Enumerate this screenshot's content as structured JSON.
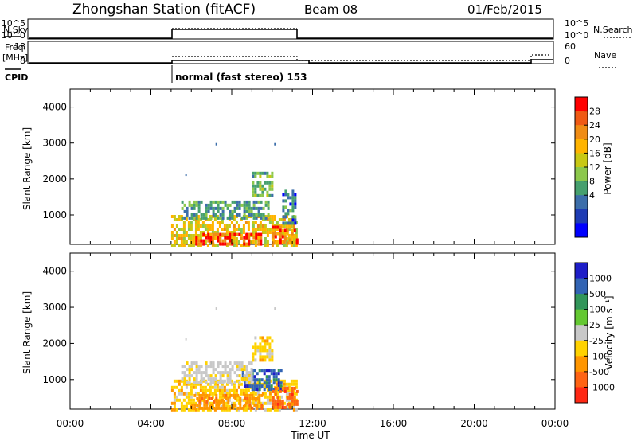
{
  "header": {
    "station": "Zhongshan Station (fitACF)",
    "beam": "Beam 08",
    "date": "01/Feb/2015"
  },
  "top_panels": {
    "nsky_label": "N.Sky",
    "nsky_ticks": [
      "10^5",
      "10^0"
    ],
    "nsearch_label": "N.Search",
    "nsearch_ticks": [
      "10^5",
      "10^0"
    ],
    "freq_label": "Freq.",
    "freq_unit": "[MHz]",
    "freq_ticks": [
      "18",
      "8"
    ],
    "nave_label": "Nave",
    "nave_ticks": [
      "60",
      "0"
    ],
    "cpid_label": "CPID",
    "cpid_text": "normal (fast stereo) 153"
  },
  "axes": {
    "x_ticks": [
      "00:00",
      "04:00",
      "08:00",
      "12:00",
      "16:00",
      "20:00",
      "00:00"
    ],
    "x_label": "Time UT",
    "y_ticks": [
      "1000",
      "2000",
      "3000",
      "4000"
    ],
    "y_label": "Slant Range [km]"
  },
  "colorbars": {
    "power": {
      "label": "Power [dB]",
      "ticks": [
        "28",
        "24",
        "20",
        "16",
        "12",
        "8",
        "4"
      ],
      "colors": [
        "#ff0000",
        "#f05a14",
        "#f08c14",
        "#ffb400",
        "#c8c814",
        "#8cc84b",
        "#46a06e",
        "#3c6eaa",
        "#1e3cb4",
        "#0000ff"
      ]
    },
    "velocity": {
      "label": "Velocity [m s⁻¹]",
      "ticks": [
        "1000",
        "500",
        "100",
        "25",
        "-25",
        "-100",
        "-500",
        "-1000"
      ],
      "colors": [
        "#1e1ec8",
        "#3264b4",
        "#32965a",
        "#64c832",
        "#c8c8c8",
        "#ffd200",
        "#ff9600",
        "#ff6414",
        "#ff2814"
      ]
    }
  },
  "chart_data": [
    {
      "type": "heatmap",
      "panel": "power",
      "x_range_hours": [
        0,
        24
      ],
      "y_range_km": [
        180,
        4500
      ],
      "x": [
        "00:00",
        "04:00",
        "08:00",
        "12:00",
        "16:00",
        "20:00",
        "00:00"
      ],
      "y": [
        1000,
        2000,
        3000,
        4000
      ],
      "ylabel": "Slant Range [km]",
      "colorbar_label": "Power [dB]",
      "regions": [
        {
          "t0": 5.0,
          "t1": 11.2,
          "r0": 180,
          "r1": 1000,
          "value": 20
        },
        {
          "t0": 6.2,
          "t1": 9.5,
          "r0": 180,
          "r1": 500,
          "value": 28
        },
        {
          "t0": 10.0,
          "t1": 11.2,
          "r0": 250,
          "r1": 700,
          "value": 26
        },
        {
          "t0": 5.5,
          "t1": 9.8,
          "r0": 900,
          "r1": 1400,
          "value": 10
        },
        {
          "t0": 9.0,
          "t1": 10.0,
          "r0": 1500,
          "r1": 2200,
          "value": 12
        },
        {
          "t0": 10.5,
          "t1": 11.2,
          "r0": 800,
          "r1": 1700,
          "value": 8
        }
      ]
    },
    {
      "type": "heatmap",
      "panel": "velocity",
      "x_range_hours": [
        0,
        24
      ],
      "y_range_km": [
        180,
        4500
      ],
      "x": [
        "00:00",
        "04:00",
        "08:00",
        "12:00",
        "16:00",
        "20:00",
        "00:00"
      ],
      "y": [
        1000,
        2000,
        3000,
        4000
      ],
      "ylabel": "Slant Range [km]",
      "xlabel": "Time UT",
      "colorbar_label": "Velocity [m s⁻¹]",
      "regions": [
        {
          "t0": 5.0,
          "t1": 11.2,
          "r0": 180,
          "r1": 1000,
          "value": -100
        },
        {
          "t0": 6.0,
          "t1": 9.5,
          "r0": 180,
          "r1": 600,
          "value": -500
        },
        {
          "t0": 8.5,
          "t1": 10.5,
          "r0": 700,
          "r1": 1300,
          "value": 500
        },
        {
          "t0": 5.5,
          "t1": 9.0,
          "r0": 900,
          "r1": 1500,
          "value": -25
        },
        {
          "t0": 9.0,
          "t1": 10.0,
          "r0": 1500,
          "r1": 2200,
          "value": -100
        },
        {
          "t0": 10.0,
          "t1": 11.2,
          "r0": 250,
          "r1": 800,
          "value": -1000
        }
      ]
    }
  ]
}
